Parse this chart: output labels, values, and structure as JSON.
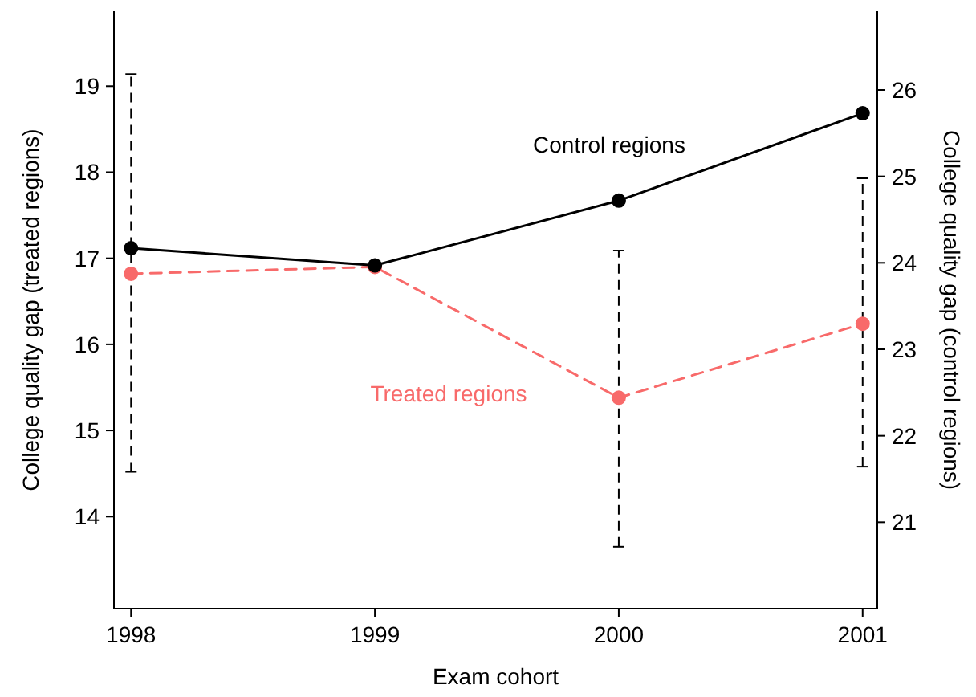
{
  "chart_data": {
    "type": "line",
    "xlabel": "Exam cohort",
    "ylabel": "College quality gap (treated regions)",
    "y2label": "College quality gap (control regions)",
    "x": [
      1998,
      1999,
      2000,
      2001
    ],
    "xlim": [
      1997.93,
      2001.06
    ],
    "xticks": [
      1998,
      1999,
      2000,
      2001
    ],
    "ylim": [
      12.93,
      19.87
    ],
    "yticks": [
      14,
      15,
      16,
      17,
      18,
      19
    ],
    "y2lim": [
      20.0,
      26.91
    ],
    "y2ticks": [
      21,
      22,
      23,
      24,
      25,
      26
    ],
    "marker": "circle",
    "grid": false,
    "legend": false,
    "series": [
      {
        "name": "Control regions",
        "color": "#000000",
        "axis": "y2",
        "line_style": "solid",
        "values": [
          24.17,
          23.97,
          24.72,
          25.73
        ]
      },
      {
        "name": "Treated regions",
        "color": "#f86a6a",
        "axis": "y",
        "line_style": "dashed",
        "values": [
          16.82,
          16.9,
          15.38,
          16.24
        ],
        "errors": [
          [
            14.52,
            19.14
          ],
          null,
          [
            13.65,
            17.09
          ],
          [
            14.58,
            17.93
          ]
        ]
      }
    ]
  }
}
